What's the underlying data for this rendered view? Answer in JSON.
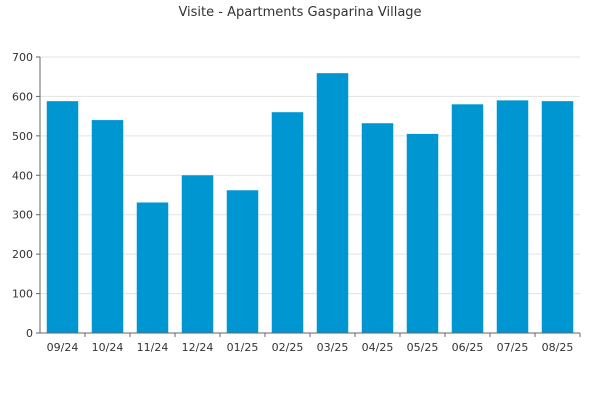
{
  "chart_data": {
    "type": "bar",
    "title": "Visite - Apartments Gasparina Village",
    "xlabel": "",
    "ylabel": "",
    "categories": [
      "09/24",
      "10/24",
      "11/24",
      "12/24",
      "01/25",
      "02/25",
      "03/25",
      "04/25",
      "05/25",
      "06/25",
      "07/25",
      "08/25"
    ],
    "values": [
      588,
      540,
      331,
      400,
      362,
      560,
      659,
      532,
      505,
      580,
      590,
      588
    ],
    "ylim": [
      0,
      700
    ],
    "yticks": [
      0,
      100,
      200,
      300,
      400,
      500,
      600,
      700
    ],
    "grid": true,
    "legend": "none",
    "colors": {
      "bar": "#0096d2",
      "grid": "#e3e3e3",
      "axis": "#666666",
      "text": "#333333"
    }
  }
}
